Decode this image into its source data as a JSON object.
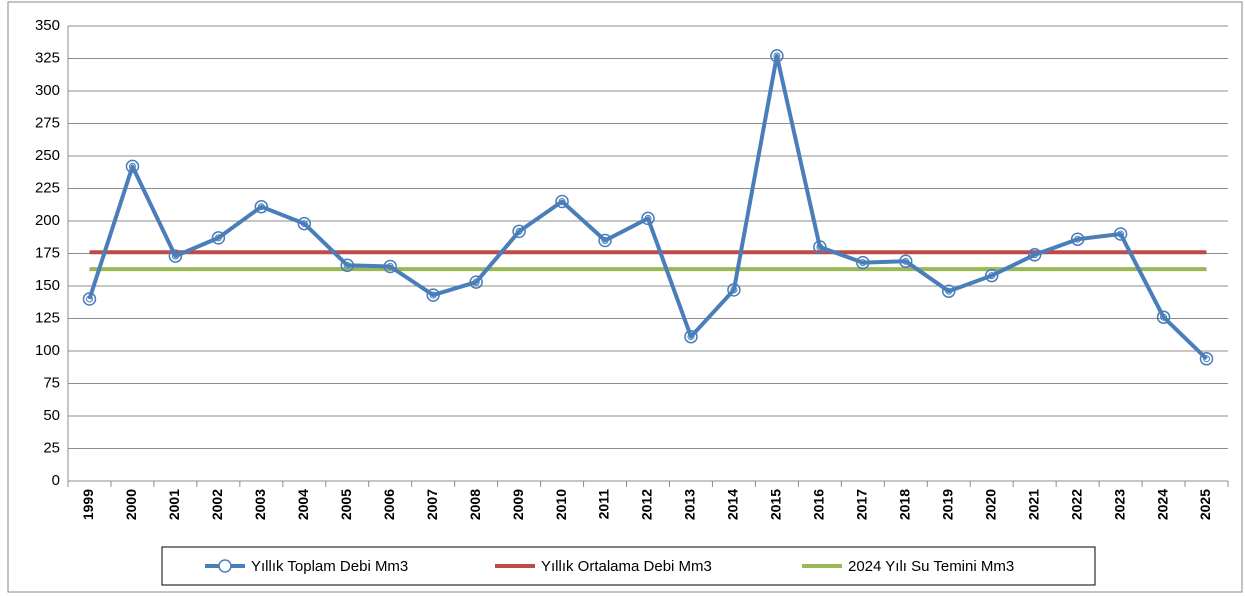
{
  "chart_data": {
    "type": "line",
    "categories": [
      "1999",
      "2000",
      "2001",
      "2002",
      "2003",
      "2004",
      "2005",
      "2006",
      "2007",
      "2008",
      "2009",
      "2010",
      "2011",
      "2012",
      "2013",
      "2014",
      "2015",
      "2016",
      "2017",
      "2018",
      "2019",
      "2020",
      "2021",
      "2022",
      "2023",
      "2024",
      "2025"
    ],
    "series": [
      {
        "name": "Yıllık Toplam Debi Mm3",
        "color": "#4a7ebb",
        "marker": "circle",
        "values": [
          140,
          242,
          173,
          187,
          211,
          198,
          166,
          165,
          143,
          153,
          192,
          215,
          185,
          202,
          111,
          147,
          327,
          180,
          168,
          169,
          146,
          158,
          174,
          186,
          190,
          126,
          94
        ]
      },
      {
        "name": "Yıllık Ortalama Debi Mm3",
        "color": "#be4b48",
        "values": [
          176,
          176,
          176,
          176,
          176,
          176,
          176,
          176,
          176,
          176,
          176,
          176,
          176,
          176,
          176,
          176,
          176,
          176,
          176,
          176,
          176,
          176,
          176,
          176,
          176,
          176,
          176
        ]
      },
      {
        "name": "2024 Yılı Su Temini Mm3",
        "color": "#98b954",
        "values": [
          163,
          163,
          163,
          163,
          163,
          163,
          163,
          163,
          163,
          163,
          163,
          163,
          163,
          163,
          163,
          163,
          163,
          163,
          163,
          163,
          163,
          163,
          163,
          163,
          163,
          163,
          163
        ]
      }
    ],
    "ylim": [
      0,
      350
    ],
    "yticks": [
      0,
      25,
      50,
      75,
      100,
      125,
      150,
      175,
      200,
      225,
      250,
      275,
      300,
      325,
      350
    ],
    "grid": true,
    "legend": "bottom"
  }
}
